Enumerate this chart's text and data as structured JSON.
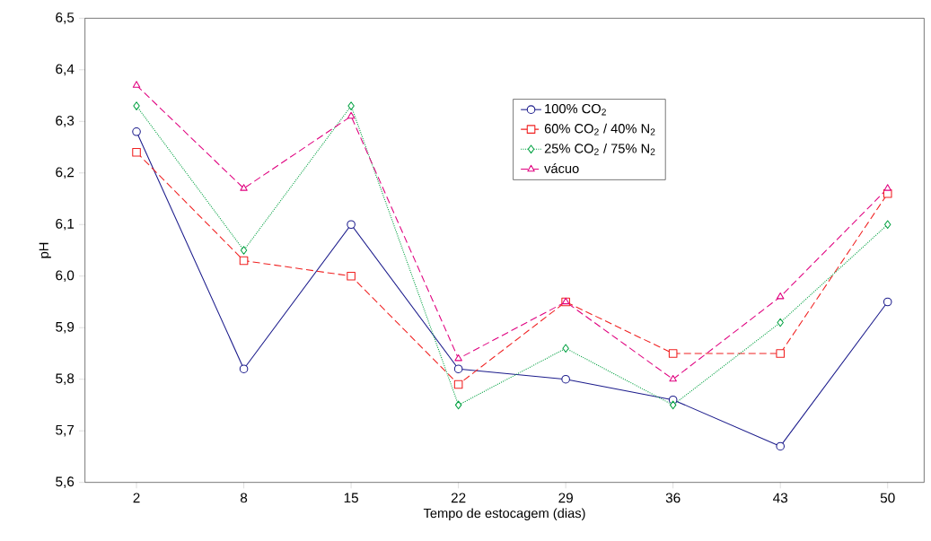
{
  "chart_data": {
    "type": "line",
    "xlabel": "Tempo de estocagem (dias)",
    "ylabel": "pH",
    "categories": [
      "2",
      "8",
      "15",
      "22",
      "29",
      "36",
      "43",
      "50"
    ],
    "ylim": [
      5.6,
      6.5
    ],
    "yticks": [
      {
        "value": 5.6,
        "label": "5,6"
      },
      {
        "value": 5.7,
        "label": "5,7"
      },
      {
        "value": 5.8,
        "label": "5,8"
      },
      {
        "value": 5.9,
        "label": "5,9"
      },
      {
        "value": 6.0,
        "label": "6,0"
      },
      {
        "value": 6.1,
        "label": "6,1"
      },
      {
        "value": 6.2,
        "label": "6,2"
      },
      {
        "value": 6.3,
        "label": "6,3"
      },
      {
        "value": 6.4,
        "label": "6,4"
      },
      {
        "value": 6.5,
        "label": "6,5"
      }
    ],
    "grid": false,
    "legend": "top right",
    "series": [
      {
        "name": "100% CO$_{2}$",
        "color": "#1c1c8c",
        "marker": "circle",
        "line_style": "solid",
        "values": [
          6.28,
          5.82,
          6.1,
          5.82,
          5.8,
          5.76,
          5.67,
          5.95
        ]
      },
      {
        "name": "60% CO$_{2}$ / 40% N$_{2}$",
        "color": "#f02020",
        "marker": "square",
        "line_style": "dashed",
        "values": [
          6.24,
          6.03,
          6.0,
          5.79,
          5.95,
          5.85,
          5.85,
          6.16
        ]
      },
      {
        "name": "25% CO$_{2}$ / 75% N$_{2}$",
        "color": "#00a040",
        "marker": "diamond",
        "line_style": "dotted",
        "values": [
          6.33,
          6.05,
          6.33,
          5.75,
          5.86,
          5.75,
          5.91,
          6.1
        ]
      },
      {
        "name": "vácuo",
        "color": "#e0007f",
        "marker": "triangle",
        "line_style": "dashed",
        "values": [
          6.37,
          6.17,
          6.31,
          5.84,
          5.95,
          5.8,
          5.96,
          6.17
        ]
      }
    ]
  }
}
